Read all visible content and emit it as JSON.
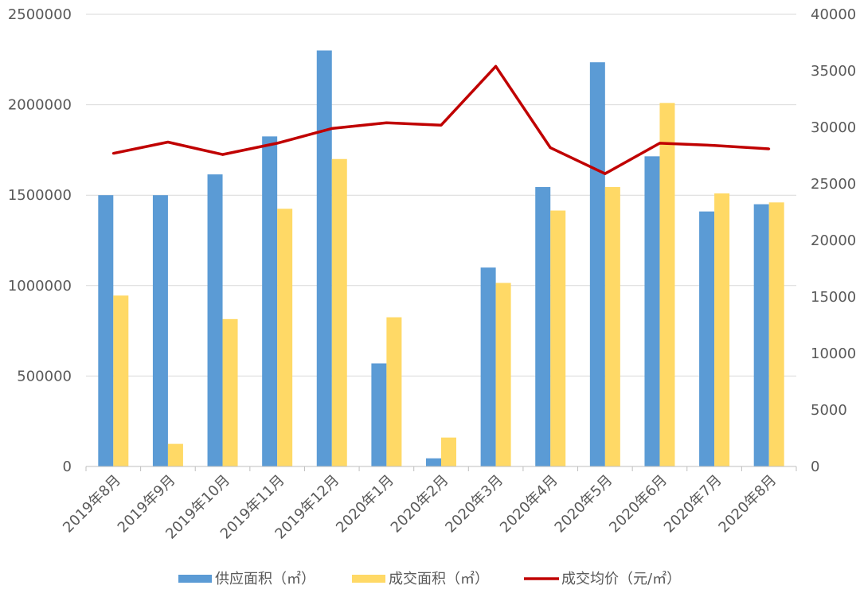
{
  "chart_data": {
    "type": "bar",
    "categories": [
      "2019年8月",
      "2019年9月",
      "2019年10月",
      "2019年11月",
      "2019年12月",
      "2020年1月",
      "2020年2月",
      "2020年3月",
      "2020年4月",
      "2020年5月",
      "2020年6月",
      "2020年7月",
      "2020年8月"
    ],
    "series": [
      {
        "name": "供应面积（㎡）",
        "type": "bar",
        "axis": "left",
        "color": "#5B9BD5",
        "values": [
          1500000,
          1500000,
          1615000,
          1825000,
          2300000,
          570000,
          45000,
          1100000,
          1545000,
          2235000,
          1715000,
          1410000,
          1450000
        ]
      },
      {
        "name": "成交面积（㎡）",
        "type": "bar",
        "axis": "left",
        "color": "#FFD966",
        "values": [
          945000,
          125000,
          815000,
          1425000,
          1700000,
          825000,
          160000,
          1015000,
          1415000,
          1545000,
          2010000,
          1510000,
          1460000
        ]
      },
      {
        "name": "成交均价（元/㎡）",
        "type": "line",
        "axis": "right",
        "color": "#C00000",
        "values": [
          27700,
          28700,
          27600,
          28600,
          29900,
          30400,
          30200,
          35400,
          28200,
          25900,
          28600,
          28400,
          28100
        ]
      }
    ],
    "y_left": {
      "min": 0,
      "max": 2500000,
      "ticks": [
        "0",
        "500000",
        "1000000",
        "1500000",
        "2000000",
        "2500000"
      ]
    },
    "y_right": {
      "min": 0,
      "max": 40000,
      "ticks": [
        "0",
        "5000",
        "10000",
        "15000",
        "20000",
        "25000",
        "30000",
        "35000",
        "40000"
      ]
    },
    "grid": true,
    "legend_position": "bottom"
  }
}
